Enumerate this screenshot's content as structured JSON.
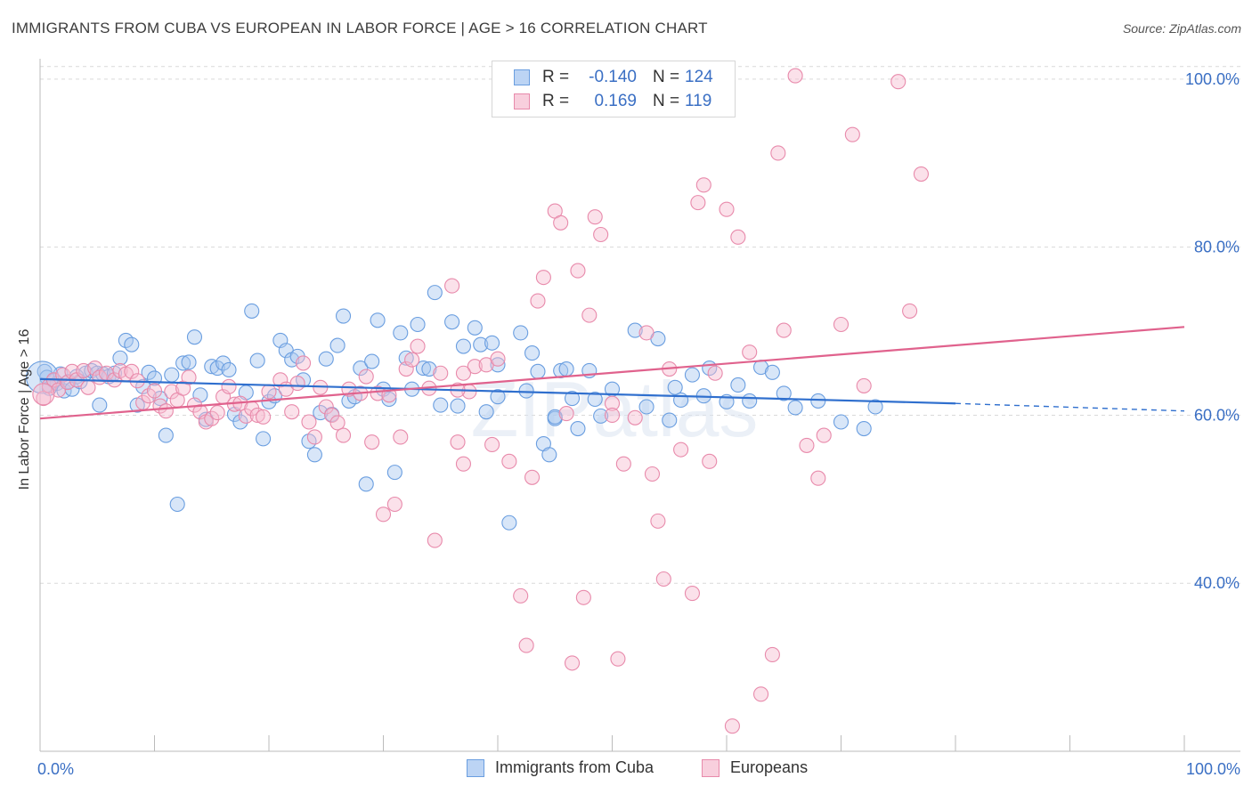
{
  "header": {
    "title": "IMMIGRANTS FROM CUBA VS EUROPEAN IN LABOR FORCE | AGE > 16 CORRELATION CHART",
    "source": "Source: ZipAtlas.com"
  },
  "watermark": "ZIPatlas",
  "legend_box": {
    "rows": [
      {
        "r_label": "R =",
        "r_value": "-0.140",
        "n_label": "N =",
        "n_value": "124",
        "color": "#a9c7f0",
        "border": "#6a9ee0"
      },
      {
        "r_label": "R =",
        "r_value": "0.169",
        "n_label": "N =",
        "n_value": "119",
        "color": "#f6bcd0",
        "border": "#e88aab"
      }
    ]
  },
  "bottom_legend": {
    "items": [
      {
        "label": "Immigrants from Cuba",
        "color": "#a9c7f0",
        "border": "#6a9ee0"
      },
      {
        "label": "Europeans",
        "color": "#f6bcd0",
        "border": "#e88aab"
      }
    ]
  },
  "chart_data": {
    "type": "scatter",
    "title": "IMMIGRANTS FROM CUBA VS EUROPEAN IN LABOR FORCE | AGE > 16 CORRELATION CHART",
    "xlabel": "",
    "ylabel": "In Labor Force | Age > 16",
    "xlim": [
      0,
      100
    ],
    "ylim": [
      20,
      102
    ],
    "x_tick_labels": [
      "0.0%",
      "100.0%"
    ],
    "y_ticks": [
      40,
      60,
      80,
      100
    ],
    "y_tick_labels": [
      "40.0%",
      "60.0%",
      "80.0%",
      "100.0%"
    ],
    "grid": true,
    "colors": {
      "cuba": "#6a9ee0",
      "cuba_fill": "#a9c7f0",
      "europe": "#e88aab",
      "europe_fill": "#f6bcd0",
      "cuba_line": "#2f6fce",
      "europe_line": "#e0628d",
      "tick_label": "#3a6fc4"
    },
    "series": [
      {
        "name": "Immigrants from Cuba",
        "points": [
          [
            0.4,
            65.2
          ],
          [
            0.6,
            64.5
          ],
          [
            0.8,
            63.2
          ],
          [
            1.2,
            64.1
          ],
          [
            1.5,
            63.8
          ],
          [
            1.8,
            64.9
          ],
          [
            2.1,
            62.9
          ],
          [
            2.5,
            64.0
          ],
          [
            2.8,
            63.1
          ],
          [
            3.2,
            64.6
          ],
          [
            3.5,
            64.0
          ],
          [
            4,
            65.0
          ],
          [
            4.5,
            65.3
          ],
          [
            5.0,
            65.0
          ],
          [
            5.2,
            61.2
          ],
          [
            5.5,
            64.9
          ],
          [
            6,
            64.6
          ],
          [
            6.5,
            65.0
          ],
          [
            7,
            66.8
          ],
          [
            7.5,
            68.9
          ],
          [
            8,
            68.4
          ],
          [
            8.5,
            61.2
          ],
          [
            9,
            63.4
          ],
          [
            9.5,
            65.1
          ],
          [
            10,
            64.4
          ],
          [
            10.5,
            62.0
          ],
          [
            11,
            57.6
          ],
          [
            11.5,
            64.8
          ],
          [
            12,
            49.4
          ],
          [
            12.5,
            66.2
          ],
          [
            13,
            66.3
          ],
          [
            13.5,
            69.3
          ],
          [
            14,
            62.4
          ],
          [
            14.5,
            59.5
          ],
          [
            15,
            65.8
          ],
          [
            15.5,
            65.6
          ],
          [
            16,
            66.2
          ],
          [
            16.5,
            65.4
          ],
          [
            17,
            60.1
          ],
          [
            17.5,
            59.2
          ],
          [
            18,
            62.7
          ],
          [
            18.5,
            72.4
          ],
          [
            19,
            66.5
          ],
          [
            19.5,
            57.2
          ],
          [
            20,
            61.6
          ],
          [
            20.5,
            62.3
          ],
          [
            21,
            68.9
          ],
          [
            21.5,
            67.7
          ],
          [
            22,
            66.6
          ],
          [
            22.5,
            67.0
          ],
          [
            23,
            64.2
          ],
          [
            23.5,
            56.9
          ],
          [
            24,
            55.3
          ],
          [
            24.5,
            60.3
          ],
          [
            25,
            66.7
          ],
          [
            25.5,
            60.1
          ],
          [
            26,
            68.3
          ],
          [
            26.5,
            71.8
          ],
          [
            27,
            61.7
          ],
          [
            27.5,
            62.2
          ],
          [
            28,
            65.6
          ],
          [
            28.5,
            51.8
          ],
          [
            29,
            66.4
          ],
          [
            29.5,
            71.3
          ],
          [
            30,
            63.1
          ],
          [
            30.5,
            61.9
          ],
          [
            31,
            53.2
          ],
          [
            31.5,
            69.8
          ],
          [
            32,
            66.8
          ],
          [
            32.5,
            63.1
          ],
          [
            33,
            70.8
          ],
          [
            33.5,
            65.6
          ],
          [
            34,
            65.5
          ],
          [
            34.5,
            74.6
          ],
          [
            35,
            61.2
          ],
          [
            36,
            71.1
          ],
          [
            36.5,
            61.1
          ],
          [
            37,
            68.2
          ],
          [
            38,
            70.4
          ],
          [
            38.5,
            68.4
          ],
          [
            39,
            60.4
          ],
          [
            39.5,
            68.6
          ],
          [
            40,
            66.0
          ],
          [
            41,
            47.2
          ],
          [
            42,
            69.8
          ],
          [
            42.5,
            62.9
          ],
          [
            43,
            67.4
          ],
          [
            43.5,
            65.2
          ],
          [
            44,
            56.6
          ],
          [
            44.5,
            55.3
          ],
          [
            45,
            59.6
          ],
          [
            45.5,
            65.3
          ],
          [
            46,
            65.5
          ],
          [
            46.5,
            62.0
          ],
          [
            47,
            58.4
          ],
          [
            48,
            65.3
          ],
          [
            48.5,
            61.9
          ],
          [
            49,
            59.9
          ],
          [
            50,
            63.1
          ],
          [
            52,
            70.1
          ],
          [
            53,
            61.0
          ],
          [
            54,
            69.1
          ],
          [
            55,
            59.4
          ],
          [
            55.5,
            63.3
          ],
          [
            56,
            61.8
          ],
          [
            57,
            64.8
          ],
          [
            58,
            62.3
          ],
          [
            58.5,
            65.6
          ],
          [
            60,
            61.6
          ],
          [
            61,
            63.6
          ],
          [
            62,
            61.7
          ],
          [
            63,
            65.7
          ],
          [
            64,
            65.1
          ],
          [
            66,
            60.9
          ],
          [
            68,
            61.7
          ],
          [
            70,
            59.2
          ],
          [
            72,
            58.4
          ],
          [
            73,
            61.0
          ],
          [
            65,
            62.6
          ],
          [
            45,
            59.8
          ],
          [
            40,
            62.2
          ]
        ]
      },
      {
        "name": "Europeans",
        "points": [
          [
            0.3,
            62.0
          ],
          [
            0.8,
            63.5
          ],
          [
            1.2,
            64.2
          ],
          [
            1.6,
            63.0
          ],
          [
            2.0,
            64.8
          ],
          [
            2.4,
            63.9
          ],
          [
            2.8,
            65.2
          ],
          [
            3.2,
            64.2
          ],
          [
            3.8,
            65.3
          ],
          [
            4.2,
            63.3
          ],
          [
            4.8,
            65.6
          ],
          [
            5.2,
            64.5
          ],
          [
            5.8,
            65.0
          ],
          [
            6.5,
            64.2
          ],
          [
            7,
            65.3
          ],
          [
            7.5,
            64.9
          ],
          [
            8,
            65.2
          ],
          [
            8.5,
            64.1
          ],
          [
            9,
            61.5
          ],
          [
            9.5,
            62.3
          ],
          [
            10,
            62.9
          ],
          [
            10.5,
            61.1
          ],
          [
            11,
            60.5
          ],
          [
            11.5,
            62.8
          ],
          [
            12,
            61.8
          ],
          [
            12.5,
            63.2
          ],
          [
            13,
            64.5
          ],
          [
            13.5,
            61.2
          ],
          [
            14,
            60.4
          ],
          [
            14.5,
            59.2
          ],
          [
            15,
            59.6
          ],
          [
            15.5,
            60.3
          ],
          [
            16,
            62.2
          ],
          [
            16.5,
            63.4
          ],
          [
            17,
            61.3
          ],
          [
            17.5,
            61.4
          ],
          [
            18,
            59.9
          ],
          [
            18.5,
            60.8
          ],
          [
            19,
            60.0
          ],
          [
            19.5,
            59.8
          ],
          [
            20,
            62.8
          ],
          [
            21,
            64.2
          ],
          [
            21.5,
            63.1
          ],
          [
            22,
            60.4
          ],
          [
            22.5,
            63.8
          ],
          [
            23,
            66.2
          ],
          [
            23.5,
            59.2
          ],
          [
            24,
            57.4
          ],
          [
            24.5,
            63.3
          ],
          [
            25,
            61.0
          ],
          [
            25.5,
            60.0
          ],
          [
            26,
            59.1
          ],
          [
            26.5,
            57.6
          ],
          [
            27,
            63.1
          ],
          [
            28,
            62.6
          ],
          [
            28.5,
            64.6
          ],
          [
            29,
            56.8
          ],
          [
            29.5,
            62.6
          ],
          [
            30,
            48.2
          ],
          [
            30.5,
            62.4
          ],
          [
            31,
            49.4
          ],
          [
            31.5,
            57.4
          ],
          [
            32,
            65.5
          ],
          [
            32.5,
            66.6
          ],
          [
            33,
            68.2
          ],
          [
            34,
            63.2
          ],
          [
            34.5,
            45.1
          ],
          [
            35,
            65.0
          ],
          [
            36,
            75.4
          ],
          [
            36.5,
            56.8
          ],
          [
            37,
            54.2
          ],
          [
            37.5,
            62.8
          ],
          [
            38,
            65.8
          ],
          [
            39,
            66.0
          ],
          [
            39.5,
            56.5
          ],
          [
            40,
            66.7
          ],
          [
            41,
            54.5
          ],
          [
            42,
            38.5
          ],
          [
            42.5,
            32.6
          ],
          [
            43,
            52.6
          ],
          [
            43.5,
            73.6
          ],
          [
            44,
            76.4
          ],
          [
            45,
            84.3
          ],
          [
            45.5,
            82.9
          ],
          [
            46,
            60.2
          ],
          [
            46.5,
            30.5
          ],
          [
            47,
            77.2
          ],
          [
            47.5,
            38.3
          ],
          [
            48,
            71.9
          ],
          [
            48.5,
            83.6
          ],
          [
            49,
            81.5
          ],
          [
            50,
            61.4
          ],
          [
            50.5,
            31.0
          ],
          [
            51,
            54.2
          ],
          [
            52,
            59.7
          ],
          [
            53,
            69.8
          ],
          [
            53.5,
            53.0
          ],
          [
            54,
            47.4
          ],
          [
            54.5,
            40.5
          ],
          [
            55,
            65.5
          ],
          [
            56,
            55.9
          ],
          [
            57,
            38.8
          ],
          [
            57.5,
            85.3
          ],
          [
            58,
            87.4
          ],
          [
            58.5,
            54.5
          ],
          [
            59,
            65.0
          ],
          [
            60,
            84.5
          ],
          [
            60.5,
            23.0
          ],
          [
            61,
            81.2
          ],
          [
            62,
            67.5
          ],
          [
            63,
            26.8
          ],
          [
            64,
            31.5
          ],
          [
            64.5,
            91.2
          ],
          [
            65,
            70.1
          ],
          [
            66,
            100.4
          ],
          [
            67,
            56.4
          ],
          [
            68,
            52.5
          ],
          [
            68.5,
            57.6
          ],
          [
            70,
            70.8
          ],
          [
            71,
            93.4
          ],
          [
            72,
            63.5
          ],
          [
            75,
            99.7
          ],
          [
            76,
            72.4
          ],
          [
            77,
            88.7
          ],
          [
            36.5,
            63.0
          ],
          [
            37,
            65.0
          ],
          [
            50,
            60.0
          ]
        ]
      }
    ],
    "trendlines": [
      {
        "name": "Immigrants from Cuba",
        "x": [
          0,
          80
        ],
        "y": [
          64.3,
          61.4
        ],
        "dashed_extension_to": [
          100,
          60.5
        ]
      },
      {
        "name": "Europeans",
        "x": [
          0,
          100
        ],
        "y": [
          59.6,
          70.5
        ]
      }
    ]
  }
}
